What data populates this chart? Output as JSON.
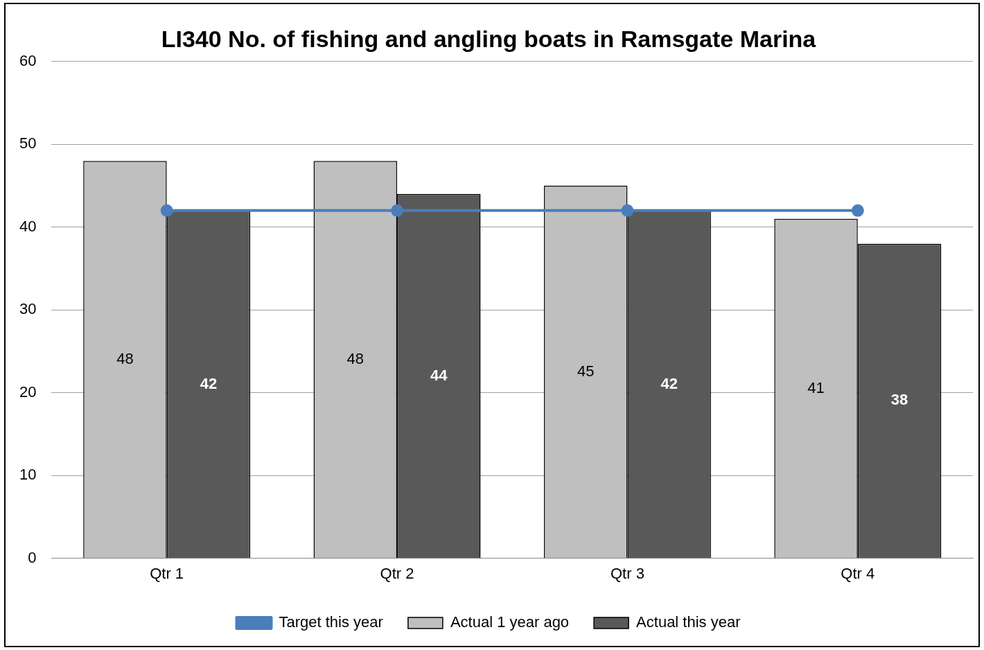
{
  "chart_data": {
    "type": "bar",
    "title": "LI340 No. of fishing and angling boats in Ramsgate Marina",
    "categories": [
      "Qtr 1",
      "Qtr 2",
      "Qtr 3",
      "Qtr 4"
    ],
    "series": [
      {
        "name": "Actual 1 year ago",
        "color": "#bfbfbf",
        "values": [
          48,
          48,
          45,
          41
        ],
        "value_labels": [
          "48",
          "48",
          "45",
          "41"
        ]
      },
      {
        "name": "Actual this year",
        "color": "#595959",
        "values": [
          42,
          44,
          42,
          38
        ],
        "value_labels": [
          "42",
          "44",
          "42",
          "38"
        ]
      },
      {
        "name": "Target this year",
        "type": "line",
        "color": "#4a7ebb",
        "values": [
          42,
          42,
          42,
          42
        ],
        "marker": "circle"
      }
    ],
    "ylim": [
      0,
      60
    ],
    "yticks": [
      0,
      10,
      20,
      30,
      40,
      50,
      60
    ],
    "grid": "y",
    "legend": "bottom"
  }
}
